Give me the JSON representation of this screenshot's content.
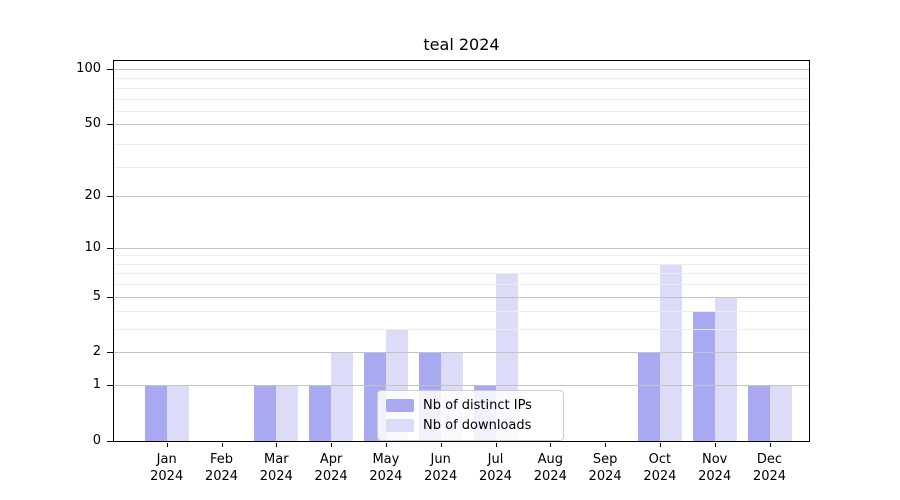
{
  "title": "teal 2024",
  "legend": {
    "items": [
      {
        "label": "Nb of distinct IPs",
        "series": "ips"
      },
      {
        "label": "Nb of downloads",
        "series": "downloads"
      }
    ]
  },
  "colors": {
    "ips": "#a9a9f1",
    "downloads": "#dcdcf8",
    "grid_major": "#c3c3c3",
    "grid_minor": "#ededed",
    "axis": "#000000",
    "legend_border": "#cccccc"
  },
  "y_axis": {
    "scale": "log10(1+value)",
    "tick_labels": [
      "100",
      "50",
      "20",
      "10",
      "5",
      "2",
      "1",
      "0"
    ],
    "tick_values": [
      100,
      50,
      20,
      10,
      5,
      2,
      1,
      0
    ],
    "minor_gridline_values": [
      3,
      4,
      6,
      7,
      8,
      9,
      29,
      39,
      59,
      69,
      79,
      89
    ]
  },
  "x_axis": {
    "year": "2024",
    "months": [
      "Jan",
      "Feb",
      "Mar",
      "Apr",
      "May",
      "Jun",
      "Jul",
      "Aug",
      "Sep",
      "Oct",
      "Nov",
      "Dec"
    ]
  },
  "chart_data": {
    "type": "bar",
    "title": "teal 2024",
    "categories": [
      "Jan 2024",
      "Feb 2024",
      "Mar 2024",
      "Apr 2024",
      "May 2024",
      "Jun 2024",
      "Jul 2024",
      "Aug 2024",
      "Sep 2024",
      "Oct 2024",
      "Nov 2024",
      "Dec 2024"
    ],
    "series": [
      {
        "name": "Nb of distinct IPs",
        "key": "ips",
        "values": [
          1,
          0,
          1,
          1,
          2,
          2,
          1,
          0,
          0,
          2,
          4,
          1
        ]
      },
      {
        "name": "Nb of downloads",
        "key": "downloads",
        "values": [
          1,
          0,
          1,
          2,
          3,
          2,
          7,
          0,
          0,
          8,
          5,
          1
        ]
      }
    ],
    "yscale": "log10(1+value)",
    "ylim": [
      0,
      113
    ],
    "yticks": [
      0,
      1,
      2,
      5,
      10,
      20,
      50,
      100
    ],
    "grid": "horizontal-on-top-of-bars",
    "legend_position": "lower center"
  }
}
